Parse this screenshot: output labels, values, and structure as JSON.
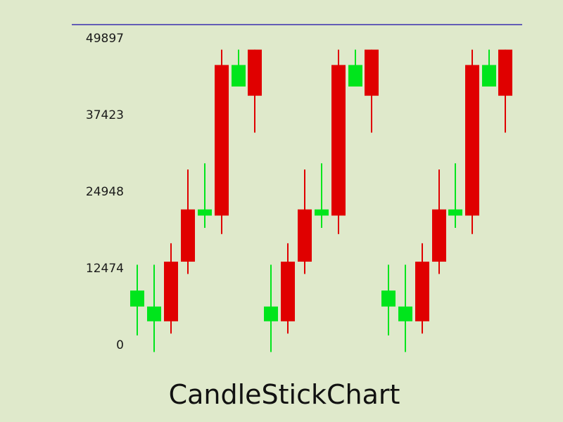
{
  "chart_data": {
    "type": "candlestick",
    "title": "CandleStickChart",
    "xlabel": "",
    "ylabel": "",
    "ylim": [
      0,
      49897
    ],
    "yticks": [
      "0",
      "12474",
      "24948",
      "37423",
      "49897"
    ],
    "grid": false,
    "colors": {
      "up": "#00e51c",
      "down": "#e00000",
      "top_line": "#3a2fb0",
      "background": "#dfe9cb"
    },
    "candles": [
      {
        "index": 0,
        "open": 6200,
        "close": 8800,
        "high": 13000,
        "low": 1500
      },
      {
        "index": 1,
        "open": 3800,
        "close": 6200,
        "high": 13000,
        "low": -1200
      },
      {
        "index": 2,
        "open": 13500,
        "close": 3800,
        "high": 16500,
        "low": 1800
      },
      {
        "index": 3,
        "open": 22000,
        "close": 13500,
        "high": 28500,
        "low": 11500
      },
      {
        "index": 4,
        "open": 21000,
        "close": 22000,
        "high": 29500,
        "low": 19000
      },
      {
        "index": 5,
        "open": 45500,
        "close": 21000,
        "high": 48000,
        "low": 18000
      },
      {
        "index": 6,
        "open": 42000,
        "close": 45500,
        "high": 48000,
        "low": 42000
      },
      {
        "index": 7,
        "open": 48000,
        "close": 40500,
        "high": 48000,
        "low": 34500
      },
      {
        "index": 8,
        "open": 3800,
        "close": 6200,
        "high": 13000,
        "low": -1200
      },
      {
        "index": 9,
        "open": 13500,
        "close": 3800,
        "high": 16500,
        "low": 1800
      },
      {
        "index": 10,
        "open": 22000,
        "close": 13500,
        "high": 28500,
        "low": 11500
      },
      {
        "index": 11,
        "open": 21000,
        "close": 22000,
        "high": 29500,
        "low": 19000
      },
      {
        "index": 12,
        "open": 45500,
        "close": 21000,
        "high": 48000,
        "low": 18000
      },
      {
        "index": 13,
        "open": 42000,
        "close": 45500,
        "high": 48000,
        "low": 42000
      },
      {
        "index": 14,
        "open": 48000,
        "close": 40500,
        "high": 48000,
        "low": 34500
      },
      {
        "index": 15,
        "open": 6200,
        "close": 8800,
        "high": 13000,
        "low": 1500
      },
      {
        "index": 16,
        "open": 3800,
        "close": 6200,
        "high": 13000,
        "low": -1200
      },
      {
        "index": 17,
        "open": 13500,
        "close": 3800,
        "high": 16500,
        "low": 1800
      },
      {
        "index": 18,
        "open": 22000,
        "close": 13500,
        "high": 28500,
        "low": 11500
      },
      {
        "index": 19,
        "open": 21000,
        "close": 22000,
        "high": 29500,
        "low": 19000
      },
      {
        "index": 20,
        "open": 45500,
        "close": 21000,
        "high": 48000,
        "low": 18000
      },
      {
        "index": 21,
        "open": 42000,
        "close": 45500,
        "high": 48000,
        "low": 42000
      },
      {
        "index": 22,
        "open": 48000,
        "close": 40500,
        "high": 48000,
        "low": 34500
      }
    ]
  }
}
